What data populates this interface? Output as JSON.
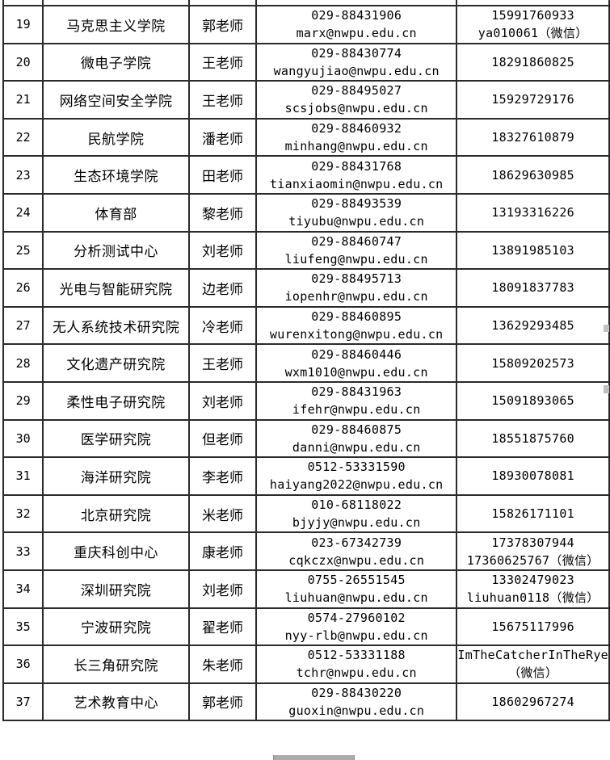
{
  "colors": {
    "background": "#ffffff",
    "border": "#2a2a2a",
    "text": "#000000",
    "scrollbar_thumb": "#ababab"
  },
  "table": {
    "rows": [
      {
        "no": "19",
        "department": "马克思主义学院",
        "contact": "郭老师",
        "phone": "029-88431906",
        "email": "marx@nwpu.edu.cn",
        "mobile": [
          "15991760933",
          "ya010061（微信）"
        ]
      },
      {
        "no": "20",
        "department": "微电子学院",
        "contact": "王老师",
        "phone": "029-88430774",
        "email": "wangyujiao@nwpu.edu.cn",
        "mobile": [
          "18291860825"
        ]
      },
      {
        "no": "21",
        "department": "网络空间安全学院",
        "contact": "王老师",
        "phone": "029-88495027",
        "email": "scsjobs@nwpu.edu.cn",
        "mobile": [
          "15929729176"
        ]
      },
      {
        "no": "22",
        "department": "民航学院",
        "contact": "潘老师",
        "phone": "029-88460932",
        "email": "minhang@nwpu.edu.cn",
        "mobile": [
          "18327610879"
        ]
      },
      {
        "no": "23",
        "department": "生态环境学院",
        "contact": "田老师",
        "phone": "029-88431768",
        "email": "tianxiaomin@nwpu.edu.cn",
        "mobile": [
          "18629630985"
        ]
      },
      {
        "no": "24",
        "department": "体育部",
        "contact": "黎老师",
        "phone": "029-88493539",
        "email": "tiyubu@nwpu.edu.cn",
        "mobile": [
          "13193316226"
        ]
      },
      {
        "no": "25",
        "department": "分析测试中心",
        "contact": "刘老师",
        "phone": "029-88460747",
        "email": "liufeng@nwpu.edu.cn",
        "mobile": [
          "13891985103"
        ]
      },
      {
        "no": "26",
        "department": "光电与智能研究院",
        "contact": "边老师",
        "phone": "029-88495713",
        "email": "iopenhr@nwpu.edu.cn",
        "mobile": [
          "18091837783"
        ]
      },
      {
        "no": "27",
        "department": "无人系统技术研究院",
        "contact": "冷老师",
        "phone": "029-88460895",
        "email": "wurenxitong@nwpu.edu.cn",
        "mobile": [
          "13629293485"
        ]
      },
      {
        "no": "28",
        "department": "文化遗产研究院",
        "contact": "王老师",
        "phone": "029-88460446",
        "email": "wxm1010@nwpu.edu.cn",
        "mobile": [
          "15809202573"
        ]
      },
      {
        "no": "29",
        "department": "柔性电子研究院",
        "contact": "刘老师",
        "phone": "029-88431963",
        "email": "ifehr@nwpu.edu.cn",
        "mobile": [
          "15091893065"
        ]
      },
      {
        "no": "30",
        "department": "医学研究院",
        "contact": "但老师",
        "phone": "029-88460875",
        "email": "danni@nwpu.edu.cn",
        "mobile": [
          "18551875760"
        ]
      },
      {
        "no": "31",
        "department": "海洋研究院",
        "contact": "李老师",
        "phone": "0512-53331590",
        "email": "haiyang2022@nwpu.edu.cn",
        "mobile": [
          "18930078081"
        ]
      },
      {
        "no": "32",
        "department": "北京研究院",
        "contact": "米老师",
        "phone": "010-68118022",
        "email": "bjyjy@nwpu.edu.cn",
        "mobile": [
          "15826171101"
        ]
      },
      {
        "no": "33",
        "department": "重庆科创中心",
        "contact": "康老师",
        "phone": "023-67342739",
        "email": "cqkczx@nwpu.edu.cn",
        "mobile": [
          "17378307944",
          "17360625767（微信）"
        ]
      },
      {
        "no": "34",
        "department": "深圳研究院",
        "contact": "刘老师",
        "phone": "0755-26551545",
        "email": "liuhuan@nwpu.edu.cn",
        "mobile": [
          "13302479023",
          "liuhuan0118（微信）"
        ]
      },
      {
        "no": "35",
        "department": "宁波研究院",
        "contact": "翟老师",
        "phone": "0574-27960102",
        "email": "nyy-rlb@nwpu.edu.cn",
        "mobile": [
          "15675117996"
        ]
      },
      {
        "no": "36",
        "department": "长三角研究院",
        "contact": "朱老师",
        "phone": "0512-53331188",
        "email": "tchr@nwpu.edu.cn",
        "mobile": [
          "ImTheCatcherInTheRye",
          "（微信）"
        ]
      },
      {
        "no": "37",
        "department": "艺术教育中心",
        "contact": "郭老师",
        "phone": "029-88430220",
        "email": "guoxin@nwpu.edu.cn",
        "mobile": [
          "18602967274"
        ]
      }
    ]
  }
}
